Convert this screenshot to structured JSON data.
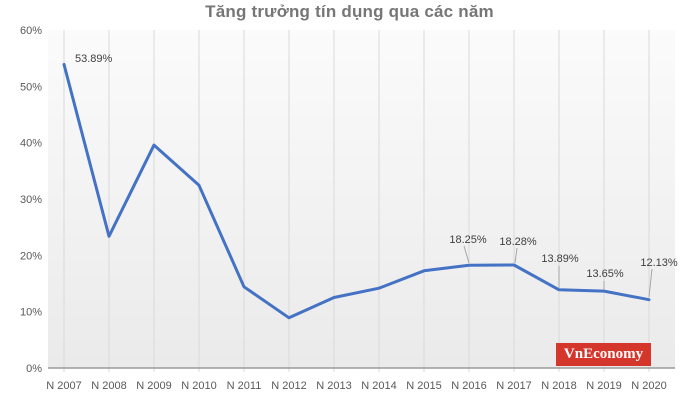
{
  "title": "Tăng trưởng tín dụng qua các năm",
  "logo": {
    "text": "VnEconomy",
    "background": "#d5362c",
    "color": "#ffffff"
  },
  "colors": {
    "line": "#4472c4",
    "gridline": "#d9d9d9",
    "axis_line": "#9a9a9a",
    "tick_label": "#595959",
    "data_label": "#404040",
    "leader_line": "#a6a6a6",
    "title": "#767676",
    "plot_bg_top": "#fbfbfb",
    "plot_bg_bottom": "#eaeaea"
  },
  "chart_data": {
    "type": "line",
    "title": "Tăng trưởng tín dụng qua các năm",
    "categories": [
      "N 2007",
      "N 2008",
      "N 2009",
      "N 2010",
      "N 2011",
      "N 2012",
      "N 2013",
      "N 2014",
      "N 2015",
      "N 2016",
      "N 2017",
      "N 2018",
      "N 2019",
      "N 2020"
    ],
    "values": [
      53.89,
      23.38,
      39.57,
      32.43,
      14.41,
      8.91,
      12.51,
      14.16,
      17.26,
      18.25,
      18.28,
      13.89,
      13.65,
      12.13
    ],
    "data_labels": [
      {
        "index": 0,
        "text": "53.89%"
      },
      {
        "index": 9,
        "text": "18.25%"
      },
      {
        "index": 10,
        "text": "18.28%"
      },
      {
        "index": 11,
        "text": "13.89%"
      },
      {
        "index": 12,
        "text": "13.65%"
      },
      {
        "index": 13,
        "text": "12.13%"
      }
    ],
    "yticks": [
      "0%",
      "10%",
      "20%",
      "30%",
      "40%",
      "50%",
      "60%"
    ],
    "ylim": [
      0,
      60
    ],
    "xlabel": "",
    "ylabel": "",
    "grid": "vertical-only",
    "legend": "none"
  }
}
